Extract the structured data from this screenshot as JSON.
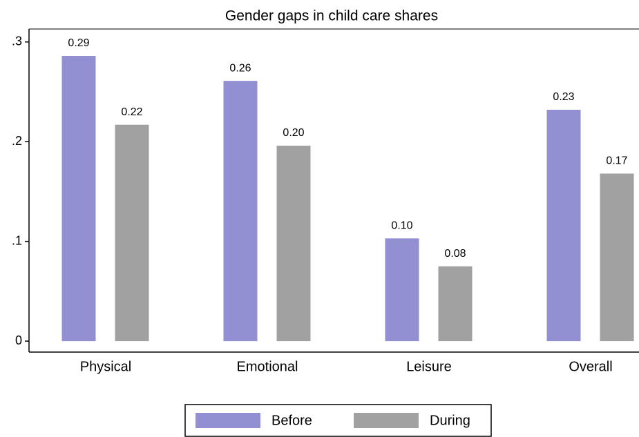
{
  "chart_data": {
    "type": "bar",
    "title": "Gender gaps in child care shares",
    "categories": [
      "Physical",
      "Emotional",
      "Leisure",
      "Overall"
    ],
    "series": [
      {
        "name": "Before",
        "color": "#938fd3",
        "values": [
          0.286,
          0.261,
          0.103,
          0.232
        ],
        "value_labels": [
          "0.29",
          "0.26",
          "0.10",
          "0.23"
        ]
      },
      {
        "name": "During",
        "color": "#a1a1a1",
        "values": [
          0.217,
          0.196,
          0.075,
          0.168
        ],
        "value_labels": [
          "0.22",
          "0.20",
          "0.08",
          "0.17"
        ]
      }
    ],
    "ylim": [
      -0.011,
      0.313
    ],
    "yticks": [
      0,
      {
        "value": 0.1,
        "label": ".1"
      },
      {
        "value": 0.2,
        "label": ".2"
      },
      {
        "value": 0.3,
        "label": ".3"
      }
    ],
    "legend": "bottom"
  }
}
